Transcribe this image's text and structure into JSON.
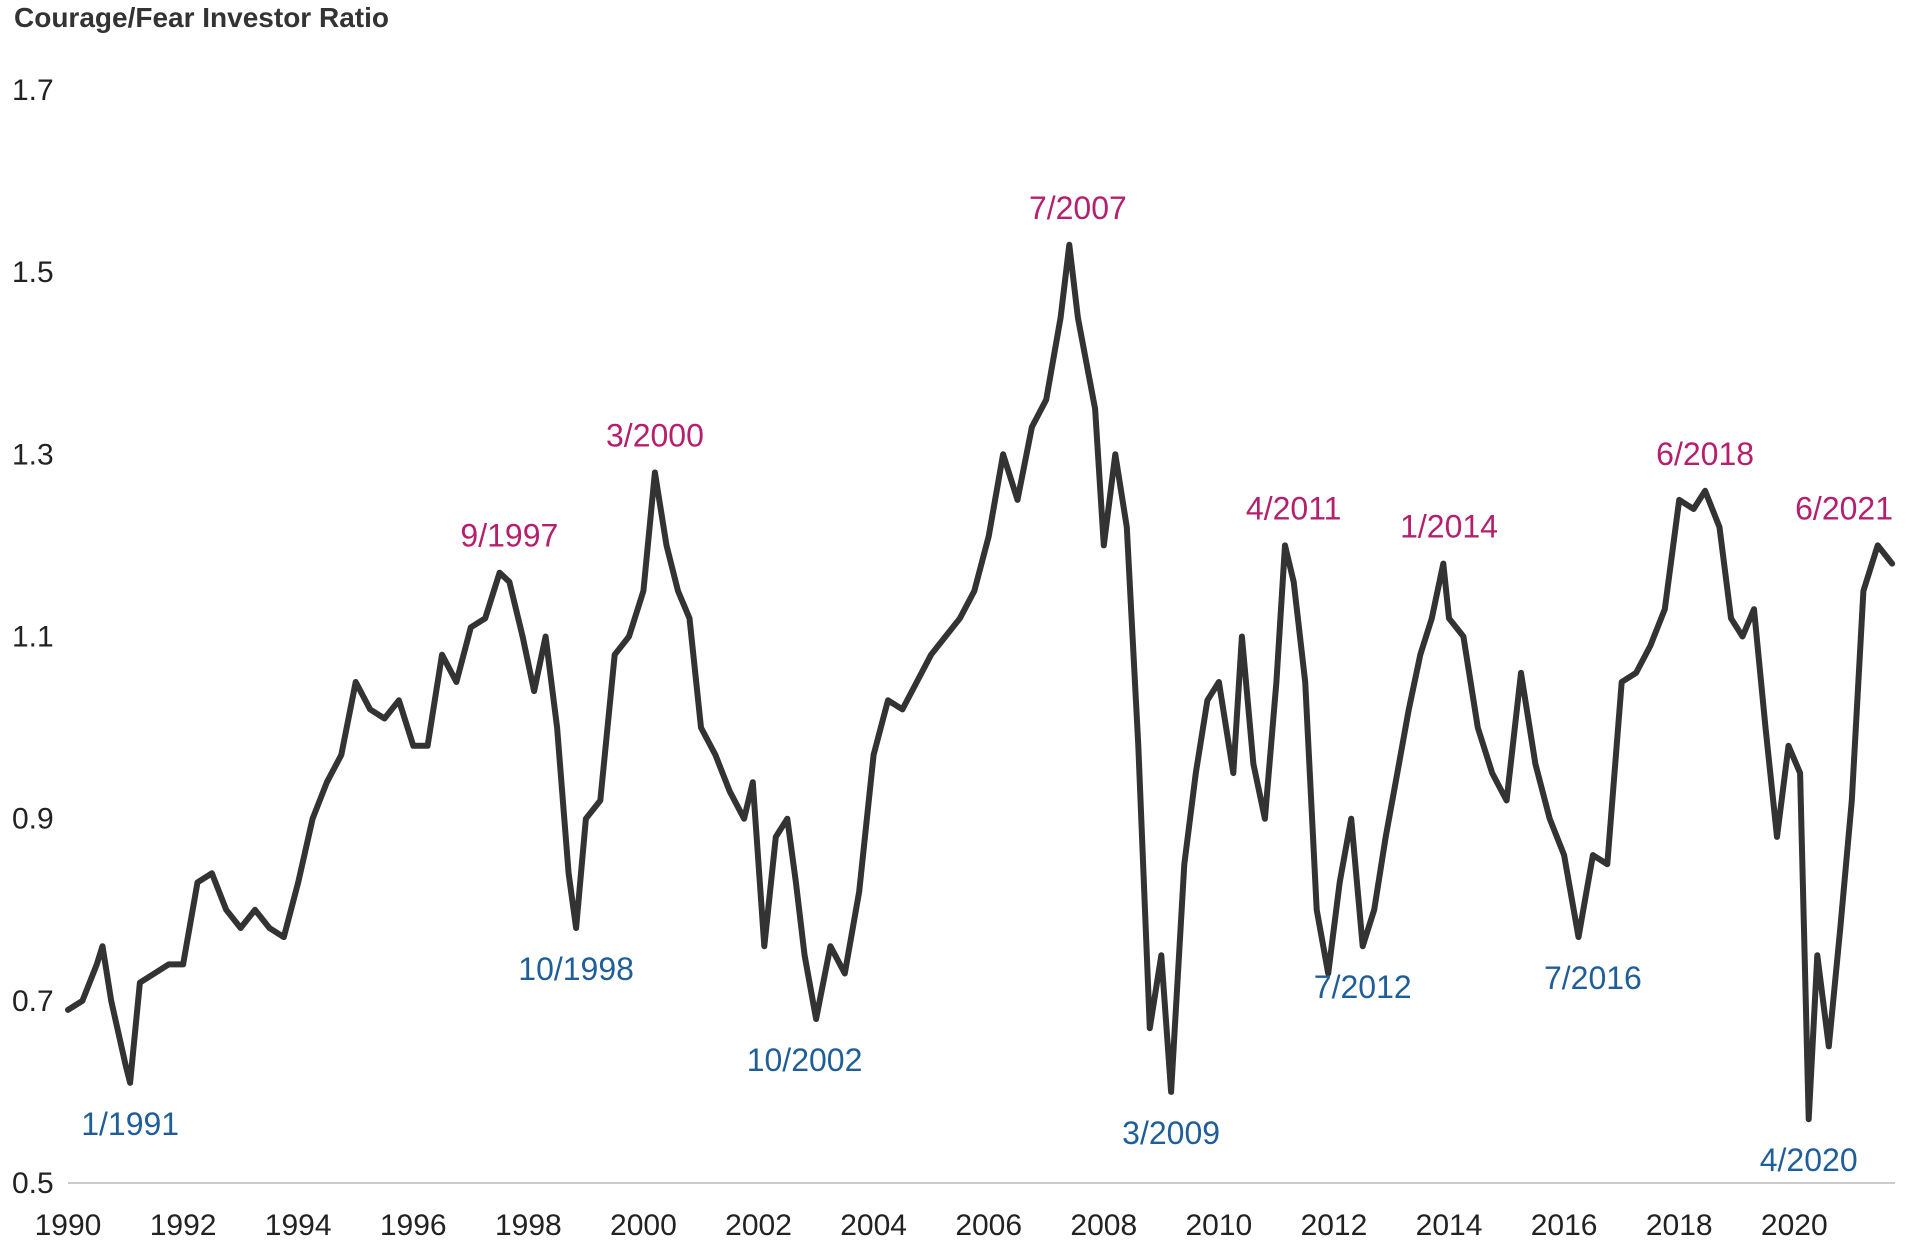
{
  "chart_data": {
    "type": "line",
    "title": "Courage/Fear Investor Ratio",
    "xlabel": "",
    "ylabel": "",
    "xlim": [
      1990,
      2021.75
    ],
    "ylim": [
      0.5,
      1.7
    ],
    "y_ticks": [
      "0.5",
      "0.7",
      "0.9",
      "1.1",
      "1.3",
      "1.5",
      "1.7"
    ],
    "x_ticks": [
      "1990",
      "1992",
      "1994",
      "1996",
      "1998",
      "2000",
      "2002",
      "2004",
      "2006",
      "2008",
      "2010",
      "2012",
      "2014",
      "2016",
      "2018",
      "2020"
    ],
    "grid": false,
    "line_color": "#333333",
    "peak_color": "#B5206E",
    "trough_color": "#1F5E99",
    "series": [
      {
        "x": [
          1990.0,
          1990.25,
          1990.5,
          1990.6,
          1990.75,
          1991.0,
          1991.08,
          1991.25,
          1991.5,
          1991.75,
          1992.0,
          1992.25,
          1992.5,
          1992.75,
          1993.0,
          1993.25,
          1993.5,
          1993.75,
          1994.0,
          1994.25,
          1994.5,
          1994.75,
          1995.0,
          1995.25,
          1995.5,
          1995.75,
          1996.0,
          1996.25,
          1996.5,
          1996.75,
          1997.0,
          1997.25,
          1997.5,
          1997.67,
          1997.9,
          1998.1,
          1998.3,
          1998.5,
          1998.7,
          1998.83,
          1999.0,
          1999.25,
          1999.5,
          1999.75,
          2000.0,
          2000.2,
          2000.4,
          2000.6,
          2000.8,
          2001.0,
          2001.25,
          2001.5,
          2001.75,
          2001.9,
          2002.1,
          2002.3,
          2002.5,
          2002.65,
          2002.8,
          2003.0,
          2003.25,
          2003.5,
          2003.75,
          2004.0,
          2004.25,
          2004.5,
          2004.75,
          2005.0,
          2005.25,
          2005.5,
          2005.75,
          2006.0,
          2006.25,
          2006.5,
          2006.75,
          2007.0,
          2007.25,
          2007.4,
          2007.55,
          2007.7,
          2007.85,
          2008.0,
          2008.2,
          2008.4,
          2008.6,
          2008.8,
          2009.0,
          2009.17,
          2009.4,
          2009.6,
          2009.8,
          2010.0,
          2010.25,
          2010.4,
          2010.6,
          2010.8,
          2011.0,
          2011.15,
          2011.3,
          2011.5,
          2011.7,
          2011.9,
          2012.1,
          2012.3,
          2012.5,
          2012.7,
          2012.9,
          2013.1,
          2013.3,
          2013.5,
          2013.7,
          2013.9,
          2014.0,
          2014.25,
          2014.5,
          2014.75,
          2015.0,
          2015.25,
          2015.5,
          2015.75,
          2016.0,
          2016.25,
          2016.5,
          2016.75,
          2017.0,
          2017.25,
          2017.5,
          2017.75,
          2018.0,
          2018.25,
          2018.45,
          2018.7,
          2018.9,
          2019.1,
          2019.3,
          2019.5,
          2019.7,
          2019.9,
          2020.1,
          2020.25,
          2020.4,
          2020.6,
          2020.8,
          2021.0,
          2021.2,
          2021.45,
          2021.7
        ],
        "values": [
          0.69,
          0.7,
          0.74,
          0.76,
          0.7,
          0.63,
          0.61,
          0.72,
          0.73,
          0.74,
          0.74,
          0.83,
          0.84,
          0.8,
          0.78,
          0.8,
          0.78,
          0.77,
          0.83,
          0.9,
          0.94,
          0.97,
          1.05,
          1.02,
          1.01,
          1.03,
          0.98,
          0.98,
          1.08,
          1.05,
          1.11,
          1.12,
          1.17,
          1.16,
          1.1,
          1.04,
          1.1,
          1.0,
          0.84,
          0.78,
          0.9,
          0.92,
          1.08,
          1.1,
          1.15,
          1.28,
          1.2,
          1.15,
          1.12,
          1.0,
          0.97,
          0.93,
          0.9,
          0.94,
          0.76,
          0.88,
          0.9,
          0.83,
          0.75,
          0.68,
          0.76,
          0.73,
          0.82,
          0.97,
          1.03,
          1.02,
          1.05,
          1.08,
          1.1,
          1.12,
          1.15,
          1.21,
          1.3,
          1.25,
          1.33,
          1.36,
          1.45,
          1.53,
          1.45,
          1.4,
          1.35,
          1.2,
          1.3,
          1.22,
          0.98,
          0.67,
          0.75,
          0.6,
          0.85,
          0.95,
          1.03,
          1.05,
          0.95,
          1.1,
          0.96,
          0.9,
          1.05,
          1.2,
          1.16,
          1.05,
          0.8,
          0.73,
          0.83,
          0.9,
          0.76,
          0.8,
          0.88,
          0.95,
          1.02,
          1.08,
          1.12,
          1.18,
          1.12,
          1.1,
          1.0,
          0.95,
          0.92,
          1.06,
          0.96,
          0.9,
          0.86,
          0.77,
          0.86,
          0.85,
          1.05,
          1.06,
          1.09,
          1.13,
          1.25,
          1.24,
          1.26,
          1.22,
          1.12,
          1.1,
          1.13,
          1.0,
          0.88,
          0.98,
          0.95,
          0.57,
          0.75,
          0.65,
          0.78,
          0.92,
          1.15,
          1.2,
          1.18
        ]
      }
    ],
    "annotations": [
      {
        "label": "1/1991",
        "x": 1991.08,
        "y": 0.61,
        "kind": "trough"
      },
      {
        "label": "9/1997",
        "x": 1997.67,
        "y": 1.17,
        "kind": "peak"
      },
      {
        "label": "10/1998",
        "x": 1998.83,
        "y": 0.78,
        "kind": "trough"
      },
      {
        "label": "3/2000",
        "x": 2000.2,
        "y": 1.28,
        "kind": "peak"
      },
      {
        "label": "10/2002",
        "x": 2002.8,
        "y": 0.68,
        "kind": "trough"
      },
      {
        "label": "7/2007",
        "x": 2007.55,
        "y": 1.53,
        "kind": "peak"
      },
      {
        "label": "3/2009",
        "x": 2009.17,
        "y": 0.6,
        "kind": "trough"
      },
      {
        "label": "4/2011",
        "x": 2011.3,
        "y": 1.2,
        "kind": "peak"
      },
      {
        "label": "7/2012",
        "x": 2012.5,
        "y": 0.76,
        "kind": "trough"
      },
      {
        "label": "1/2014",
        "x": 2014.0,
        "y": 1.18,
        "kind": "peak"
      },
      {
        "label": "7/2016",
        "x": 2016.5,
        "y": 0.77,
        "kind": "trough"
      },
      {
        "label": "6/2018",
        "x": 2018.45,
        "y": 1.26,
        "kind": "peak"
      },
      {
        "label": "4/2020",
        "x": 2020.25,
        "y": 0.57,
        "kind": "trough"
      },
      {
        "label": "6/2021",
        "x": 2021.45,
        "y": 1.2,
        "kind": "peak"
      }
    ]
  }
}
